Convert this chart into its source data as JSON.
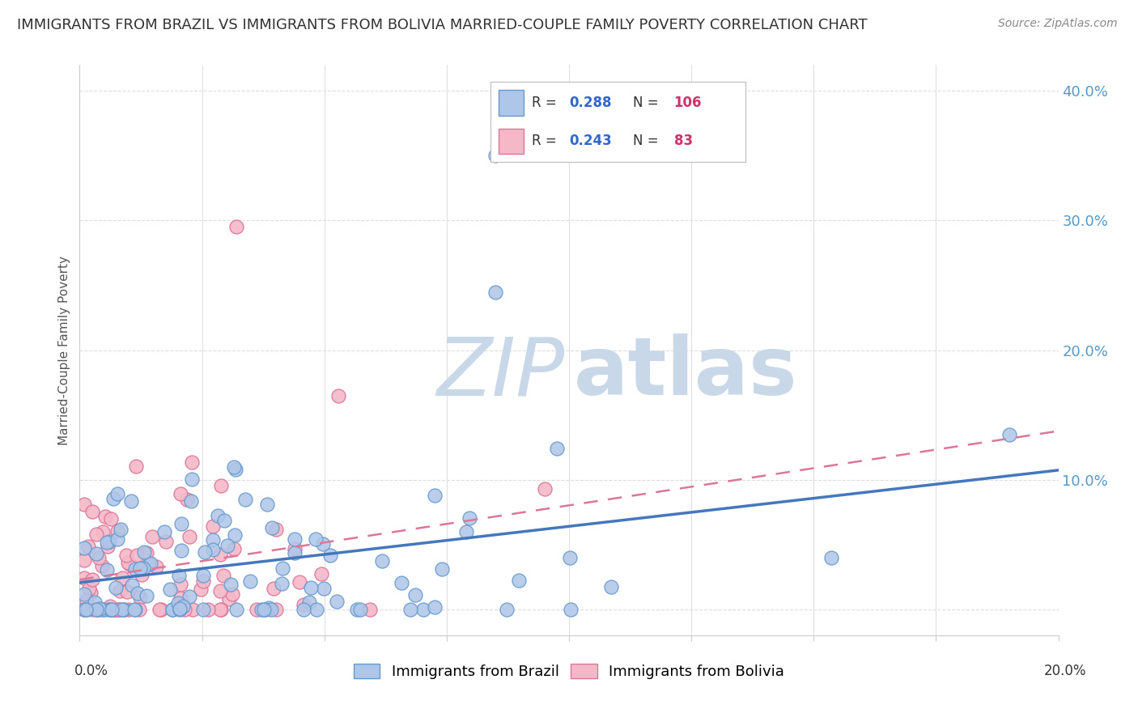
{
  "title": "IMMIGRANTS FROM BRAZIL VS IMMIGRANTS FROM BOLIVIA MARRIED-COUPLE FAMILY POVERTY CORRELATION CHART",
  "source": "Source: ZipAtlas.com",
  "ylabel": "Married-Couple Family Poverty",
  "xlim": [
    0.0,
    0.2
  ],
  "ylim": [
    -0.02,
    0.42
  ],
  "brazil_R": 0.288,
  "brazil_N": 106,
  "bolivia_R": 0.243,
  "bolivia_N": 83,
  "brazil_color": "#aec6e8",
  "brazil_edge": "#6699cc",
  "bolivia_color": "#f4b8c8",
  "bolivia_edge": "#dd7799",
  "brazil_line_color": "#4477bb",
  "bolivia_line_color": "#dd7799",
  "watermark_zip_color": "#c8d8e8",
  "watermark_atlas_color": "#c8d8e8",
  "background_color": "#ffffff",
  "grid_color": "#dddddd",
  "legend_R_color": "#3366cc",
  "legend_N_color": "#cc3366",
  "title_fontsize": 13,
  "title_color": "#333333",
  "source_color": "#888888",
  "ytick_color": "#5599cc",
  "xlabel_color": "#333333"
}
